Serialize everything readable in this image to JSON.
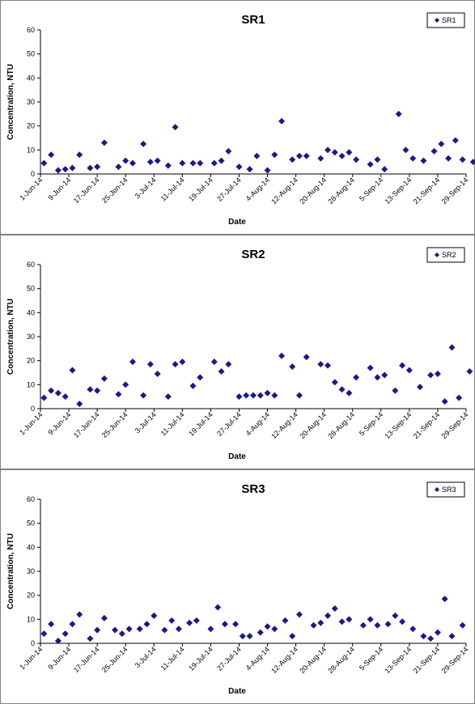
{
  "colors": {
    "marker": "#1a1a8c",
    "border": "#808080",
    "axis": "#000000"
  },
  "chart_data": [
    {
      "type": "scatter",
      "title": "SR1",
      "xlabel": "Date",
      "ylabel": "Concentration, NTU",
      "ylim": [
        0,
        60
      ],
      "yticks": [
        0,
        10,
        20,
        30,
        40,
        50,
        60
      ],
      "xlim": [
        "2014-06-01",
        "2014-09-29"
      ],
      "xticklabels": [
        "1-Jun-14",
        "9-Jun-14",
        "17-Jun-14",
        "25-Jun-14",
        "3-Jul-14",
        "11-Jul-14",
        "19-Jul-14",
        "27-Jul-14",
        "4-Aug-14",
        "12-Aug-14",
        "20-Aug-14",
        "28-Aug-14",
        "5-Sep-14",
        "13-Sep-14",
        "21-Sep-14",
        "29-Sep-14"
      ],
      "legend_position": "top-right",
      "grid": false,
      "series": [
        {
          "name": "SR1",
          "points": [
            [
              "2014-06-02",
              4.5
            ],
            [
              "2014-06-04",
              8
            ],
            [
              "2014-06-06",
              1.5
            ],
            [
              "2014-06-08",
              2
            ],
            [
              "2014-06-10",
              2.5
            ],
            [
              "2014-06-12",
              8
            ],
            [
              "2014-06-15",
              2.5
            ],
            [
              "2014-06-17",
              3
            ],
            [
              "2014-06-19",
              13
            ],
            [
              "2014-06-23",
              3
            ],
            [
              "2014-06-25",
              5.5
            ],
            [
              "2014-06-27",
              4.5
            ],
            [
              "2014-06-30",
              12.5
            ],
            [
              "2014-07-02",
              5
            ],
            [
              "2014-07-04",
              5.5
            ],
            [
              "2014-07-07",
              3.5
            ],
            [
              "2014-07-09",
              19.5
            ],
            [
              "2014-07-11",
              4.5
            ],
            [
              "2014-07-14",
              4.5
            ],
            [
              "2014-07-16",
              4.5
            ],
            [
              "2014-07-20",
              4.5
            ],
            [
              "2014-07-22",
              5.5
            ],
            [
              "2014-07-24",
              9.5
            ],
            [
              "2014-07-27",
              3
            ],
            [
              "2014-07-30",
              2
            ],
            [
              "2014-08-01",
              7.5
            ],
            [
              "2014-08-04",
              1.5
            ],
            [
              "2014-08-06",
              8
            ],
            [
              "2014-08-08",
              22
            ],
            [
              "2014-08-11",
              6
            ],
            [
              "2014-08-13",
              7.5
            ],
            [
              "2014-08-15",
              7.5
            ],
            [
              "2014-08-19",
              6.5
            ],
            [
              "2014-08-21",
              10
            ],
            [
              "2014-08-23",
              9
            ],
            [
              "2014-08-25",
              7.5
            ],
            [
              "2014-08-27",
              9
            ],
            [
              "2014-08-29",
              6
            ],
            [
              "2014-09-02",
              4
            ],
            [
              "2014-09-04",
              6
            ],
            [
              "2014-09-06",
              2
            ],
            [
              "2014-09-10",
              25
            ],
            [
              "2014-09-12",
              10
            ],
            [
              "2014-09-14",
              6.5
            ],
            [
              "2014-09-17",
              5.5
            ],
            [
              "2014-09-20",
              9.5
            ],
            [
              "2014-09-22",
              12.5
            ],
            [
              "2014-09-24",
              6.5
            ],
            [
              "2014-09-26",
              14
            ],
            [
              "2014-09-28",
              6
            ],
            [
              "2014-10-01",
              5
            ]
          ]
        }
      ]
    },
    {
      "type": "scatter",
      "title": "SR2",
      "xlabel": "Date",
      "ylabel": "Concentration, NTU",
      "ylim": [
        0,
        60
      ],
      "yticks": [
        0,
        10,
        20,
        30,
        40,
        50,
        60
      ],
      "xlim": [
        "2014-06-01",
        "2014-09-29"
      ],
      "xticklabels": [
        "1-Jun-14",
        "9-Jun-14",
        "17-Jun-14",
        "25-Jun-14",
        "3-Jul-14",
        "11-Jul-14",
        "19-Jul-14",
        "27-Jul-14",
        "4-Aug-14",
        "12-Aug-14",
        "20-Aug-14",
        "28-Aug-14",
        "5-Sep-14",
        "13-Sep-14",
        "21-Sep-14",
        "29-Sep-14"
      ],
      "legend_position": "top-right",
      "grid": false,
      "series": [
        {
          "name": "SR2",
          "points": [
            [
              "2014-06-02",
              4.5
            ],
            [
              "2014-06-04",
              7.5
            ],
            [
              "2014-06-06",
              6.5
            ],
            [
              "2014-06-08",
              5
            ],
            [
              "2014-06-10",
              16
            ],
            [
              "2014-06-12",
              2
            ],
            [
              "2014-06-15",
              8
            ],
            [
              "2014-06-17",
              7.5
            ],
            [
              "2014-06-19",
              12.5
            ],
            [
              "2014-06-23",
              6
            ],
            [
              "2014-06-25",
              10
            ],
            [
              "2014-06-27",
              19.5
            ],
            [
              "2014-06-30",
              5.5
            ],
            [
              "2014-07-02",
              18.5
            ],
            [
              "2014-07-04",
              14.5
            ],
            [
              "2014-07-07",
              5
            ],
            [
              "2014-07-09",
              18.5
            ],
            [
              "2014-07-11",
              19.5
            ],
            [
              "2014-07-14",
              9.5
            ],
            [
              "2014-07-16",
              13
            ],
            [
              "2014-07-20",
              19.5
            ],
            [
              "2014-07-22",
              15.5
            ],
            [
              "2014-07-24",
              18.5
            ],
            [
              "2014-07-27",
              5
            ],
            [
              "2014-07-29",
              5.5
            ],
            [
              "2014-07-31",
              5.5
            ],
            [
              "2014-08-02",
              5.5
            ],
            [
              "2014-08-04",
              6.5
            ],
            [
              "2014-08-06",
              5.5
            ],
            [
              "2014-08-08",
              22
            ],
            [
              "2014-08-11",
              17.5
            ],
            [
              "2014-08-13",
              5.5
            ],
            [
              "2014-08-15",
              21.5
            ],
            [
              "2014-08-19",
              18.5
            ],
            [
              "2014-08-21",
              18
            ],
            [
              "2014-08-23",
              11
            ],
            [
              "2014-08-25",
              8
            ],
            [
              "2014-08-27",
              6.5
            ],
            [
              "2014-08-29",
              13
            ],
            [
              "2014-09-02",
              17
            ],
            [
              "2014-09-04",
              13
            ],
            [
              "2014-09-06",
              14
            ],
            [
              "2014-09-09",
              7.5
            ],
            [
              "2014-09-11",
              18
            ],
            [
              "2014-09-13",
              16
            ],
            [
              "2014-09-16",
              9
            ],
            [
              "2014-09-19",
              14
            ],
            [
              "2014-09-21",
              14.5
            ],
            [
              "2014-09-23",
              3
            ],
            [
              "2014-09-25",
              25.5
            ],
            [
              "2014-09-27",
              4.5
            ],
            [
              "2014-09-30",
              15.5
            ]
          ]
        }
      ]
    },
    {
      "type": "scatter",
      "title": "SR3",
      "xlabel": "Date",
      "ylabel": "Concentration, NTU",
      "ylim": [
        0,
        60
      ],
      "yticks": [
        0,
        10,
        20,
        30,
        40,
        50,
        60
      ],
      "xlim": [
        "2014-06-01",
        "2014-09-29"
      ],
      "xticklabels": [
        "1-Jun-14",
        "9-Jun-14",
        "17-Jun-14",
        "25-Jun-14",
        "3-Jul-14",
        "11-Jul-14",
        "19-Jul-14",
        "27-Jul-14",
        "4-Aug-14",
        "12-Aug-14",
        "20-Aug-14",
        "28-Aug-14",
        "5-Sep-14",
        "13-Sep-14",
        "21-Sep-14",
        "29-Sep-14"
      ],
      "legend_position": "top-right",
      "grid": false,
      "series": [
        {
          "name": "SR3",
          "points": [
            [
              "2014-06-02",
              4
            ],
            [
              "2014-06-04",
              8
            ],
            [
              "2014-06-06",
              1
            ],
            [
              "2014-06-08",
              4
            ],
            [
              "2014-06-10",
              8
            ],
            [
              "2014-06-12",
              12
            ],
            [
              "2014-06-15",
              2
            ],
            [
              "2014-06-17",
              5.5
            ],
            [
              "2014-06-19",
              10.5
            ],
            [
              "2014-06-22",
              5.5
            ],
            [
              "2014-06-24",
              4
            ],
            [
              "2014-06-26",
              6
            ],
            [
              "2014-06-29",
              6
            ],
            [
              "2014-07-01",
              8
            ],
            [
              "2014-07-03",
              11.5
            ],
            [
              "2014-07-06",
              5.5
            ],
            [
              "2014-07-08",
              9.5
            ],
            [
              "2014-07-10",
              6
            ],
            [
              "2014-07-13",
              8.5
            ],
            [
              "2014-07-15",
              9.5
            ],
            [
              "2014-07-19",
              6
            ],
            [
              "2014-07-21",
              15
            ],
            [
              "2014-07-23",
              8
            ],
            [
              "2014-07-26",
              8
            ],
            [
              "2014-07-28",
              3
            ],
            [
              "2014-07-30",
              3
            ],
            [
              "2014-08-02",
              4.5
            ],
            [
              "2014-08-04",
              7
            ],
            [
              "2014-08-06",
              6
            ],
            [
              "2014-08-09",
              9.5
            ],
            [
              "2014-08-11",
              3
            ],
            [
              "2014-08-13",
              12
            ],
            [
              "2014-08-17",
              7.5
            ],
            [
              "2014-08-19",
              8.5
            ],
            [
              "2014-08-21",
              11.5
            ],
            [
              "2014-08-23",
              14.5
            ],
            [
              "2014-08-25",
              9
            ],
            [
              "2014-08-27",
              10
            ],
            [
              "2014-08-31",
              7.5
            ],
            [
              "2014-09-02",
              10
            ],
            [
              "2014-09-04",
              7.5
            ],
            [
              "2014-09-07",
              8
            ],
            [
              "2014-09-09",
              11.5
            ],
            [
              "2014-09-11",
              9
            ],
            [
              "2014-09-14",
              6
            ],
            [
              "2014-09-17",
              3
            ],
            [
              "2014-09-19",
              2
            ],
            [
              "2014-09-21",
              4.5
            ],
            [
              "2014-09-23",
              18.5
            ],
            [
              "2014-09-25",
              3
            ],
            [
              "2014-09-28",
              7.5
            ]
          ]
        }
      ]
    }
  ]
}
